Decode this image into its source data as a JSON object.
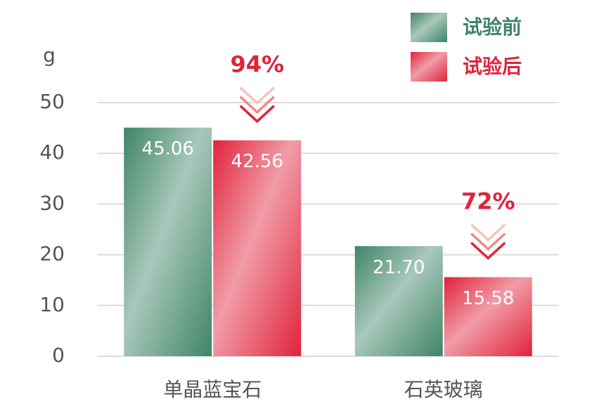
{
  "chart_data": {
    "type": "bar",
    "y_unit": "g",
    "categories": [
      "单晶蓝宝石",
      "石英玻璃"
    ],
    "series": [
      {
        "name": "试验前",
        "color": "#3f8467",
        "values": [
          45.06,
          21.7
        ],
        "value_labels": [
          "45.06",
          "21.70"
        ]
      },
      {
        "name": "试验后",
        "color": "#e0233b",
        "values": [
          42.56,
          15.58
        ],
        "value_labels": [
          "42.56",
          "15.58"
        ]
      }
    ],
    "annotations": [
      "94%",
      "72%"
    ],
    "ylim": [
      0,
      50
    ],
    "yticks": [
      0,
      10,
      20,
      30,
      40,
      50
    ],
    "grid": true,
    "legend": "top-right"
  }
}
